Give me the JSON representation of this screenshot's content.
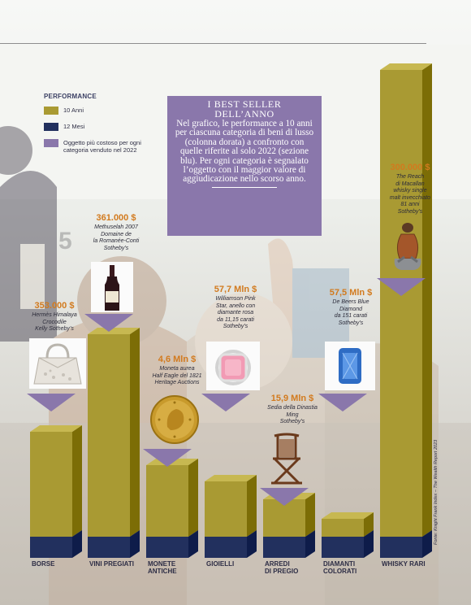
{
  "legend": {
    "title": "PERFORMANCE",
    "items": [
      {
        "label": "10 Anni",
        "color": "#a99a33"
      },
      {
        "label": "12 Mesi",
        "color": "#22305e"
      },
      {
        "label": "Oggetto più costoso per ogni categoria venduto nel 2022",
        "color": "#8a77ab"
      }
    ]
  },
  "infobox": {
    "title_line1": "I BEST SELLER",
    "title_line2": "DELL’ANNO",
    "body": "Nel grafico, le performance a 10 anni per ciascuna categoria di beni di lusso (colonna dorata) a confronto con quelle riferite al solo 2022 (sezione blu). Per ogni categoria è segnalato l’oggetto con il maggior valore di aggiudicazione nello scorso anno."
  },
  "source": "Fonte: Knight Frank Index – The Wealth Report 2023",
  "chart_data": {
    "type": "bar",
    "categories": [
      "BORSE",
      "VINI PREGIATI",
      "MONETE ANTICHE",
      "GIOIELLI",
      "ARREDI DI PREGIO",
      "DIAMANTI COLORATI",
      "WHISKY RARI"
    ],
    "category_lines": [
      [
        "BORSE"
      ],
      [
        "VINI PREGIATI"
      ],
      [
        "MONETE",
        "ANTICHE"
      ],
      [
        "GIOIELLI"
      ],
      [
        "ARREDI",
        "DI PREGIO"
      ],
      [
        "DIAMANTI",
        "COLORATI"
      ],
      [
        "WHISKY RARI"
      ]
    ],
    "series": [
      {
        "name": "10 Anni",
        "values": [
          74,
          162,
          59,
          44,
          34,
          16,
          373
        ],
        "labels": [
          "74%",
          "162%",
          "59%",
          "44%",
          "34%",
          "16%",
          "373%"
        ]
      },
      {
        "name": "12 Mesi",
        "values": [
          15,
          10,
          8,
          6,
          4,
          4,
          3
        ],
        "labels": [
          "15%",
          "10%",
          "8%",
          "6%",
          "4%",
          "4%",
          "3%"
        ]
      }
    ],
    "top_items": [
      {
        "price": "353.000 $",
        "desc": [
          "Hermès Himalaya",
          "Crocodile",
          "Kelly Sotheby’s"
        ],
        "icon": "handbag-icon"
      },
      {
        "price": "361.000 $",
        "desc": [
          "Methuselah 2007",
          "Domaine de",
          "la Romanée-Conti",
          "Sotheby’s"
        ],
        "icon": "wine-bottle-icon"
      },
      {
        "price": "4,6 Mln $",
        "desc": [
          "Moneta aurea",
          "Half Eagle del 1821",
          "Heritage Auctions"
        ],
        "icon": "gold-coin-icon"
      },
      {
        "price": "57,7 Mln $",
        "desc": [
          "Williamson Pink",
          "Star, anello con",
          "diamante rosa",
          "da 11,15 carati",
          "Sotheby’s"
        ],
        "icon": "pink-diamond-ring-icon"
      },
      {
        "price": "15,9 Mln $",
        "desc": [
          "Sedia della Dinastia",
          "Ming",
          "Sotheby’s"
        ],
        "icon": "ming-chair-icon"
      },
      {
        "price": "57,5 Mln $",
        "desc": [
          "De Beers Blue",
          "Diamond",
          "da 151 carati",
          "Sotheby’s"
        ],
        "icon": "blue-diamond-icon"
      },
      {
        "price": "300.000 $",
        "desc": [
          "The Reach",
          "di Macallan",
          "whisky single",
          "malt invecchiato",
          "81 anni",
          "Sotheby’s"
        ],
        "icon": "whisky-decanter-icon"
      }
    ]
  }
}
